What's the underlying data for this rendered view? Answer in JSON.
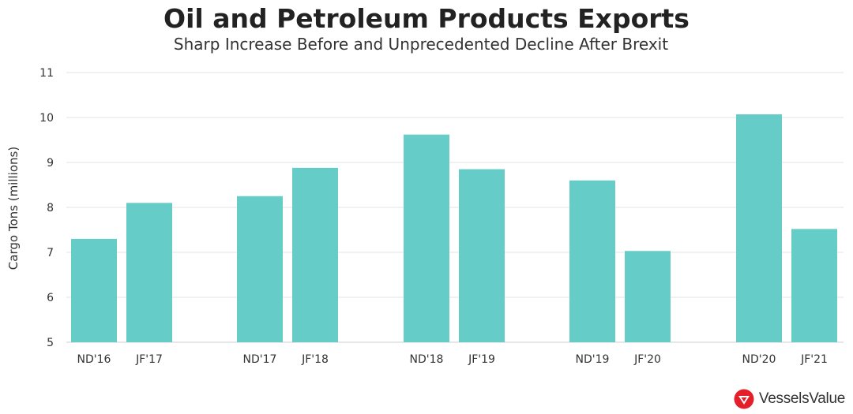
{
  "chart_data": {
    "type": "bar",
    "title": "Oil and Petroleum Products Exports",
    "subtitle": "Sharp Increase Before and Unprecedented Decline After Brexit",
    "ylabel": "Cargo Tons (millions)",
    "ylim": [
      5,
      11
    ],
    "yticks": [
      5,
      6,
      7,
      8,
      9,
      10,
      11
    ],
    "grid": true,
    "bar_color": "#66ccc7",
    "categories": [
      "ND'16",
      "JF'17",
      "ND'17",
      "JF'18",
      "ND'18",
      "JF'19",
      "ND'19",
      "JF'20",
      "ND'20",
      "JF'21"
    ],
    "values": [
      7.3,
      8.1,
      8.25,
      8.88,
      9.62,
      8.85,
      8.6,
      7.03,
      10.07,
      7.52
    ]
  },
  "branding": {
    "logo_text": "VesselsValue",
    "logo_color": "#e3202a"
  }
}
